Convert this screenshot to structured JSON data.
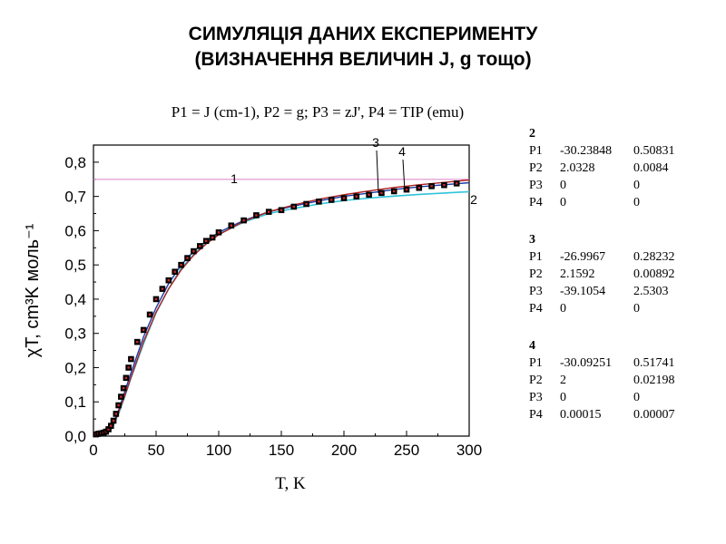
{
  "title_line1": "СИМУЛЯЦІЯ ДАНИХ ЕКСПЕРИМЕНТУ",
  "title_line2": "(ВИЗНАЧЕННЯ ВЕЛИЧИН J, g тощо)",
  "subtitle": "P1 = J (cm-1), P2 = g; P3 = zJ', P4 = TIP (emu)",
  "chart_data": {
    "type": "scatter",
    "xlabel": "T, K",
    "ylabel": "χT, cm³K моль⁻¹",
    "xlim": [
      0,
      300
    ],
    "ylim": [
      0,
      0.85
    ],
    "xticks": [
      "0",
      "50",
      "100",
      "150",
      "200",
      "250",
      "300"
    ],
    "yticks": [
      "0,0",
      "0,1",
      "0,2",
      "0,3",
      "0,4",
      "0,5",
      "0,6",
      "0,7",
      "0,8"
    ],
    "colors": {
      "experiment": "#000000",
      "inner_point": "#cc2a2a",
      "curve1": "#e08fd0",
      "curve2": "#2ec4d8",
      "curve3": "#1a3aa8",
      "curve4": "#b02020"
    },
    "series": [
      {
        "marker": "square",
        "x": [
          2,
          4,
          6,
          8,
          10,
          12,
          14,
          16,
          18,
          20,
          22,
          24,
          26,
          28,
          30,
          35,
          40,
          45,
          50,
          55,
          60,
          65,
          70,
          75,
          80,
          85,
          90,
          95,
          100,
          110,
          120,
          130,
          140,
          150,
          160,
          170,
          180,
          190,
          200,
          210,
          220,
          230,
          240,
          250,
          260,
          270,
          280,
          290
        ],
        "y": [
          0.005,
          0.007,
          0.008,
          0.01,
          0.013,
          0.02,
          0.03,
          0.045,
          0.065,
          0.09,
          0.115,
          0.14,
          0.17,
          0.2,
          0.225,
          0.275,
          0.31,
          0.355,
          0.4,
          0.43,
          0.455,
          0.48,
          0.5,
          0.52,
          0.54,
          0.555,
          0.57,
          0.58,
          0.595,
          0.615,
          0.63,
          0.645,
          0.655,
          0.66,
          0.67,
          0.678,
          0.685,
          0.69,
          0.695,
          0.7,
          0.705,
          0.71,
          0.715,
          0.72,
          0.725,
          0.73,
          0.733,
          0.738
        ]
      },
      {
        "label": "1",
        "x": [
          0,
          300
        ],
        "y": [
          0.75,
          0.75
        ]
      },
      {
        "label": "2",
        "x": [
          0,
          5,
          10,
          15,
          20,
          25,
          30,
          40,
          50,
          60,
          70,
          80,
          90,
          100,
          120,
          140,
          160,
          180,
          200,
          220,
          240,
          260,
          280,
          300
        ],
        "y": [
          0,
          0,
          0.004,
          0.025,
          0.065,
          0.115,
          0.17,
          0.27,
          0.36,
          0.43,
          0.49,
          0.53,
          0.565,
          0.59,
          0.625,
          0.65,
          0.665,
          0.678,
          0.688,
          0.695,
          0.701,
          0.706,
          0.71,
          0.714
        ]
      },
      {
        "label": "3",
        "x": [
          0,
          5,
          10,
          15,
          20,
          25,
          30,
          40,
          50,
          60,
          70,
          80,
          90,
          100,
          120,
          140,
          160,
          180,
          200,
          220,
          240,
          260,
          280,
          300
        ],
        "y": [
          0,
          0,
          0.005,
          0.03,
          0.075,
          0.13,
          0.185,
          0.29,
          0.375,
          0.445,
          0.5,
          0.54,
          0.57,
          0.595,
          0.63,
          0.655,
          0.672,
          0.687,
          0.7,
          0.71,
          0.72,
          0.728,
          0.734,
          0.74
        ]
      },
      {
        "label": "4",
        "x": [
          0,
          5,
          10,
          15,
          20,
          25,
          30,
          40,
          50,
          60,
          70,
          80,
          90,
          100,
          120,
          140,
          160,
          180,
          200,
          220,
          240,
          260,
          280,
          300
        ],
        "y": [
          0,
          0,
          0.004,
          0.026,
          0.068,
          0.118,
          0.172,
          0.276,
          0.362,
          0.43,
          0.485,
          0.528,
          0.561,
          0.588,
          0.627,
          0.655,
          0.675,
          0.692,
          0.705,
          0.716,
          0.726,
          0.734,
          0.741,
          0.748
        ]
      }
    ]
  },
  "fits": [
    {
      "label": "2",
      "rows": [
        [
          "P1",
          "-30.23848",
          "0.50831"
        ],
        [
          "P2",
          "2.0328",
          "0.0084"
        ],
        [
          "P3",
          "0",
          "0"
        ],
        [
          "P4",
          "0",
          "0"
        ]
      ]
    },
    {
      "label": "3",
      "rows": [
        [
          "P1",
          "-26.9967",
          "0.28232"
        ],
        [
          "P2",
          "2.1592",
          "0.00892"
        ],
        [
          "P3",
          "-39.1054",
          "2.5303"
        ],
        [
          "P4",
          "0",
          "0"
        ]
      ]
    },
    {
      "label": "4",
      "rows": [
        [
          "P1",
          "-30.09251",
          "0.51741"
        ],
        [
          "P2",
          "2",
          "0.02198"
        ],
        [
          "P3",
          "0",
          "0"
        ],
        [
          "P4",
          "0.00015",
          "0.00007"
        ]
      ]
    }
  ]
}
